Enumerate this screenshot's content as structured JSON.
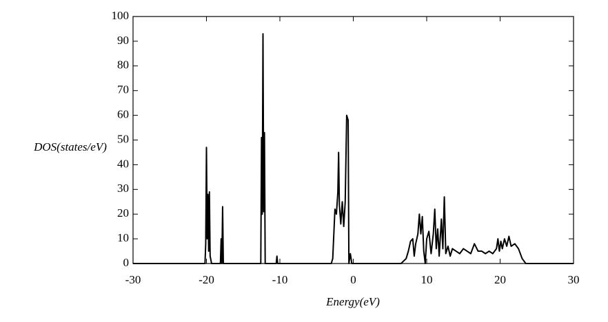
{
  "chart_data": {
    "type": "line",
    "xlabel": "Energy(eV)",
    "ylabel": "DOS(states/eV)",
    "x": [
      -30,
      -20.2,
      -20.1,
      -20.0,
      -19.9,
      -19.8,
      -19.7,
      -19.6,
      -19.5,
      -19.3,
      -18.1,
      -18.0,
      -17.9,
      -17.8,
      -17.7,
      -12.6,
      -12.5,
      -12.4,
      -12.3,
      -12.2,
      -12.1,
      -12.0,
      -10.5,
      -10.4,
      -10.3,
      -3.0,
      -2.8,
      -2.5,
      -2.3,
      -2.1,
      -2.0,
      -1.9,
      -1.7,
      -1.5,
      -1.3,
      -1.1,
      -0.9,
      -0.7,
      -0.6,
      -0.4,
      -0.2,
      6.5,
      7.2,
      7.5,
      7.8,
      8.1,
      8.3,
      8.5,
      8.8,
      9.0,
      9.2,
      9.4,
      9.6,
      9.8,
      10.0,
      10.3,
      10.6,
      10.9,
      11.1,
      11.3,
      11.5,
      11.7,
      12.0,
      12.2,
      12.4,
      12.6,
      12.9,
      13.2,
      13.5,
      14.0,
      14.5,
      15.0,
      15.5,
      16.0,
      16.5,
      17.0,
      17.5,
      18.0,
      18.5,
      19.0,
      19.5,
      19.7,
      19.9,
      20.1,
      20.3,
      20.6,
      20.9,
      21.2,
      21.5,
      22.0,
      22.5,
      23.0,
      23.5,
      30
    ],
    "series": [
      {
        "color": "#000000",
        "values": [
          0,
          0,
          8,
          47,
          10,
          28,
          5,
          29,
          3,
          0,
          0,
          10,
          0,
          23,
          0,
          0,
          51,
          20,
          93,
          21,
          53,
          0,
          0,
          3,
          0,
          0,
          2,
          22,
          20,
          29,
          45,
          24,
          16,
          25,
          15,
          25,
          60,
          58,
          0,
          4,
          0,
          0,
          2,
          5,
          9,
          10,
          3,
          8,
          12,
          20,
          12,
          19,
          5,
          0,
          10,
          13,
          4,
          12,
          22,
          6,
          14,
          3,
          18,
          6,
          27,
          4,
          7,
          3,
          6,
          5,
          4,
          6,
          5,
          4,
          8,
          5,
          5,
          4,
          5,
          4,
          6,
          10,
          5,
          9,
          6,
          10,
          7,
          11,
          7,
          8,
          6,
          2,
          0,
          0
        ]
      }
    ],
    "xlim": [
      -30,
      30
    ],
    "xticks": [
      -30,
      -20,
      -10,
      0,
      10,
      20,
      30
    ],
    "ylim": [
      0,
      100
    ],
    "yticks": [
      0,
      10,
      20,
      30,
      40,
      50,
      60,
      70,
      80,
      90,
      100
    ]
  }
}
